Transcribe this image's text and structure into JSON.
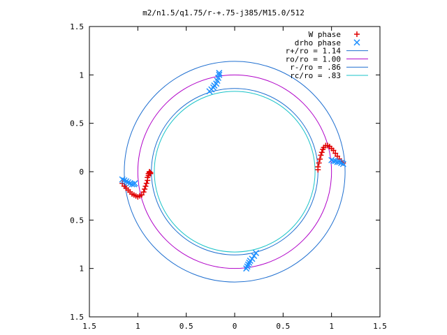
{
  "chart_data": {
    "type": "scatter",
    "title": "m2/n1.5/q1.75/r-+.75-j385/M15.0/512",
    "xlabel": "",
    "ylabel": "",
    "xlim": [
      -1.5,
      1.5
    ],
    "ylim": [
      -1.5,
      1.5
    ],
    "x_ticks": [
      -1.5,
      -1,
      -0.5,
      0,
      0.5,
      1,
      1.5
    ],
    "y_ticks": [
      1.5,
      1,
      0.5,
      0,
      -0.5,
      -1,
      -1.5
    ],
    "x_tick_labels": [
      "1.5",
      "1",
      "0.5",
      "0",
      "0.5",
      "1",
      "1.5"
    ],
    "y_tick_labels": [
      "1.5",
      "1",
      "0.5",
      "0",
      "0.5",
      "1",
      "1.5"
    ],
    "grid": false,
    "legend_position": "top-right",
    "circles": [
      {
        "name": "r+/ro = 1.14",
        "radius": 1.14,
        "color": "#1f6fd0"
      },
      {
        "name": "ro/ro = 1.00",
        "radius": 1.0,
        "color": "#b000c8"
      },
      {
        "name": "r-/ro = .86",
        "radius": 0.86,
        "color": "#1f6fd0"
      },
      {
        "name": "rc/ro = .83",
        "radius": 0.83,
        "color": "#19c3c8"
      }
    ],
    "series": [
      {
        "name": "W phase",
        "marker": "+",
        "color": "#e00000",
        "x": [
          -1.16,
          -1.14,
          -1.12,
          -1.1,
          -1.08,
          -1.06,
          -1.04,
          -1.02,
          -1.0,
          -0.98,
          -0.96,
          -0.94,
          -0.93,
          -0.92,
          -0.91,
          -0.9,
          -0.9,
          -0.89,
          -0.89,
          -0.88,
          -0.88,
          -0.87,
          -0.87,
          0.86,
          0.86,
          0.87,
          0.88,
          0.89,
          0.9,
          0.91,
          0.92,
          0.94,
          0.96,
          0.98,
          1.0,
          1.02,
          1.04,
          1.06,
          1.08,
          1.1,
          1.12
        ],
        "y": [
          -0.12,
          -0.15,
          -0.17,
          -0.19,
          -0.21,
          -0.23,
          -0.24,
          -0.25,
          -0.26,
          -0.25,
          -0.24,
          -0.21,
          -0.18,
          -0.15,
          -0.12,
          -0.09,
          -0.06,
          -0.04,
          -0.02,
          -0.01,
          0.0,
          -0.01,
          -0.02,
          0.02,
          0.05,
          0.09,
          0.13,
          0.17,
          0.2,
          0.23,
          0.25,
          0.27,
          0.27,
          0.26,
          0.24,
          0.22,
          0.19,
          0.16,
          0.13,
          0.11,
          0.09
        ]
      },
      {
        "name": "drho phase",
        "marker": "x",
        "color": "#1e90ff",
        "x": [
          -1.16,
          -1.14,
          -1.12,
          -1.1,
          -1.08,
          -1.06,
          -1.04,
          -1.03,
          -0.26,
          -0.24,
          -0.22,
          -0.21,
          -0.19,
          -0.18,
          -0.17,
          -0.16,
          -0.16,
          1.0,
          1.02,
          1.04,
          1.06,
          1.08,
          1.1,
          1.12,
          0.12,
          0.13,
          0.14,
          0.15,
          0.16,
          0.18,
          0.2,
          0.22
        ],
        "y": [
          -0.08,
          -0.09,
          -0.1,
          -0.11,
          -0.12,
          -0.13,
          -0.13,
          -0.12,
          0.83,
          0.85,
          0.87,
          0.89,
          0.91,
          0.94,
          0.97,
          1.0,
          1.02,
          0.12,
          0.11,
          0.11,
          0.1,
          0.1,
          0.09,
          0.08,
          -1.0,
          -0.98,
          -0.96,
          -0.94,
          -0.92,
          -0.9,
          -0.87,
          -0.84
        ]
      }
    ]
  }
}
